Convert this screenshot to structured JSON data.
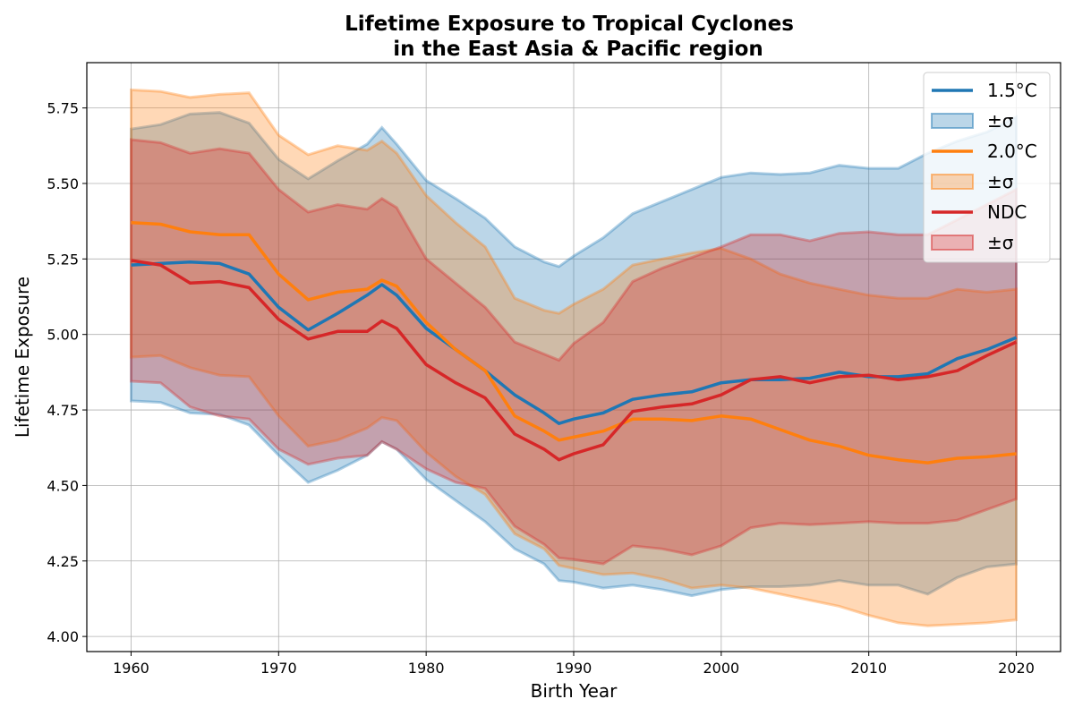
{
  "chart_data": {
    "type": "line",
    "title": "Lifetime Exposure to Tropical Cyclones",
    "subtitle": "in the East Asia & Pacific region",
    "xlabel": "Birth Year",
    "ylabel": "Lifetime Exposure",
    "xlim": [
      1957,
      2023
    ],
    "ylim": [
      3.95,
      5.9
    ],
    "xticks": [
      1960,
      1970,
      1980,
      1990,
      2000,
      2010,
      2020
    ],
    "yticks": [
      4.0,
      4.25,
      4.5,
      4.75,
      5.0,
      5.25,
      5.5,
      5.75
    ],
    "ytick_labels": [
      "4.00",
      "4.25",
      "4.50",
      "4.75",
      "5.00",
      "5.25",
      "5.50",
      "5.75"
    ],
    "grid": true,
    "legend_position": "top-right",
    "x": [
      1960,
      1962,
      1964,
      1966,
      1968,
      1970,
      1972,
      1974,
      1976,
      1977,
      1978,
      1980,
      1982,
      1984,
      1986,
      1988,
      1989,
      1990,
      1992,
      1994,
      1996,
      1998,
      2000,
      2002,
      2004,
      2006,
      2008,
      2010,
      2012,
      2014,
      2016,
      2018,
      2020
    ],
    "series": [
      {
        "name": "1.5°C",
        "band_label": "±σ",
        "color": "#1f77b4",
        "values": [
          5.23,
          5.235,
          5.24,
          5.235,
          5.2,
          5.09,
          5.015,
          5.07,
          5.13,
          5.165,
          5.13,
          5.02,
          4.95,
          4.88,
          4.8,
          4.74,
          4.705,
          4.72,
          4.74,
          4.785,
          4.8,
          4.81,
          4.84,
          4.85,
          4.85,
          4.855,
          4.875,
          4.86,
          4.86,
          4.87,
          4.92,
          4.95,
          4.99
        ],
        "upper": [
          5.68,
          5.695,
          5.73,
          5.735,
          5.7,
          5.58,
          5.515,
          5.575,
          5.63,
          5.685,
          5.63,
          5.51,
          5.45,
          5.385,
          5.29,
          5.24,
          5.225,
          5.26,
          5.32,
          5.4,
          5.44,
          5.48,
          5.52,
          5.535,
          5.53,
          5.535,
          5.56,
          5.55,
          5.55,
          5.6,
          5.64,
          5.67,
          5.72
        ],
        "lower": [
          4.78,
          4.775,
          4.74,
          4.735,
          4.7,
          4.6,
          4.51,
          4.55,
          4.6,
          4.645,
          4.62,
          4.52,
          4.45,
          4.38,
          4.29,
          4.24,
          4.185,
          4.18,
          4.16,
          4.17,
          4.155,
          4.135,
          4.155,
          4.165,
          4.165,
          4.17,
          4.185,
          4.17,
          4.17,
          4.14,
          4.195,
          4.23,
          4.24
        ]
      },
      {
        "name": "2.0°C",
        "band_label": "±σ",
        "color": "#ff7f0e",
        "values": [
          5.37,
          5.365,
          5.34,
          5.33,
          5.33,
          5.2,
          5.115,
          5.14,
          5.15,
          5.18,
          5.16,
          5.04,
          4.95,
          4.88,
          4.73,
          4.68,
          4.65,
          4.66,
          4.68,
          4.72,
          4.72,
          4.715,
          4.73,
          4.72,
          4.685,
          4.65,
          4.63,
          4.6,
          4.585,
          4.575,
          4.59,
          4.595,
          4.605
        ],
        "upper": [
          5.81,
          5.805,
          5.785,
          5.795,
          5.8,
          5.66,
          5.595,
          5.625,
          5.61,
          5.64,
          5.6,
          5.46,
          5.37,
          5.29,
          5.12,
          5.08,
          5.07,
          5.1,
          5.15,
          5.23,
          5.25,
          5.27,
          5.285,
          5.25,
          5.2,
          5.17,
          5.15,
          5.13,
          5.12,
          5.12,
          5.15,
          5.14,
          5.15
        ],
        "lower": [
          4.925,
          4.93,
          4.89,
          4.865,
          4.86,
          4.73,
          4.63,
          4.65,
          4.69,
          4.725,
          4.715,
          4.61,
          4.53,
          4.47,
          4.34,
          4.29,
          4.235,
          4.225,
          4.205,
          4.21,
          4.19,
          4.16,
          4.17,
          4.16,
          4.14,
          4.12,
          4.1,
          4.07,
          4.045,
          4.035,
          4.04,
          4.045,
          4.055
        ]
      },
      {
        "name": "NDC",
        "band_label": "±σ",
        "color": "#d62728",
        "values": [
          5.245,
          5.23,
          5.17,
          5.175,
          5.155,
          5.05,
          4.985,
          5.01,
          5.01,
          5.045,
          5.02,
          4.9,
          4.84,
          4.79,
          4.67,
          4.62,
          4.585,
          4.605,
          4.635,
          4.745,
          4.76,
          4.77,
          4.8,
          4.85,
          4.86,
          4.84,
          4.86,
          4.865,
          4.85,
          4.86,
          4.88,
          4.93,
          4.975
        ],
        "upper": [
          5.645,
          5.635,
          5.6,
          5.615,
          5.6,
          5.48,
          5.405,
          5.43,
          5.415,
          5.45,
          5.42,
          5.25,
          5.17,
          5.09,
          4.975,
          4.935,
          4.915,
          4.97,
          5.04,
          5.175,
          5.22,
          5.255,
          5.29,
          5.33,
          5.33,
          5.31,
          5.335,
          5.34,
          5.33,
          5.33,
          5.38,
          5.43,
          5.48
        ],
        "lower": [
          4.845,
          4.84,
          4.76,
          4.73,
          4.72,
          4.62,
          4.57,
          4.59,
          4.6,
          4.645,
          4.62,
          4.555,
          4.51,
          4.49,
          4.365,
          4.305,
          4.26,
          4.255,
          4.24,
          4.3,
          4.29,
          4.27,
          4.3,
          4.36,
          4.375,
          4.37,
          4.375,
          4.38,
          4.375,
          4.375,
          4.385,
          4.42,
          4.455
        ]
      }
    ]
  }
}
